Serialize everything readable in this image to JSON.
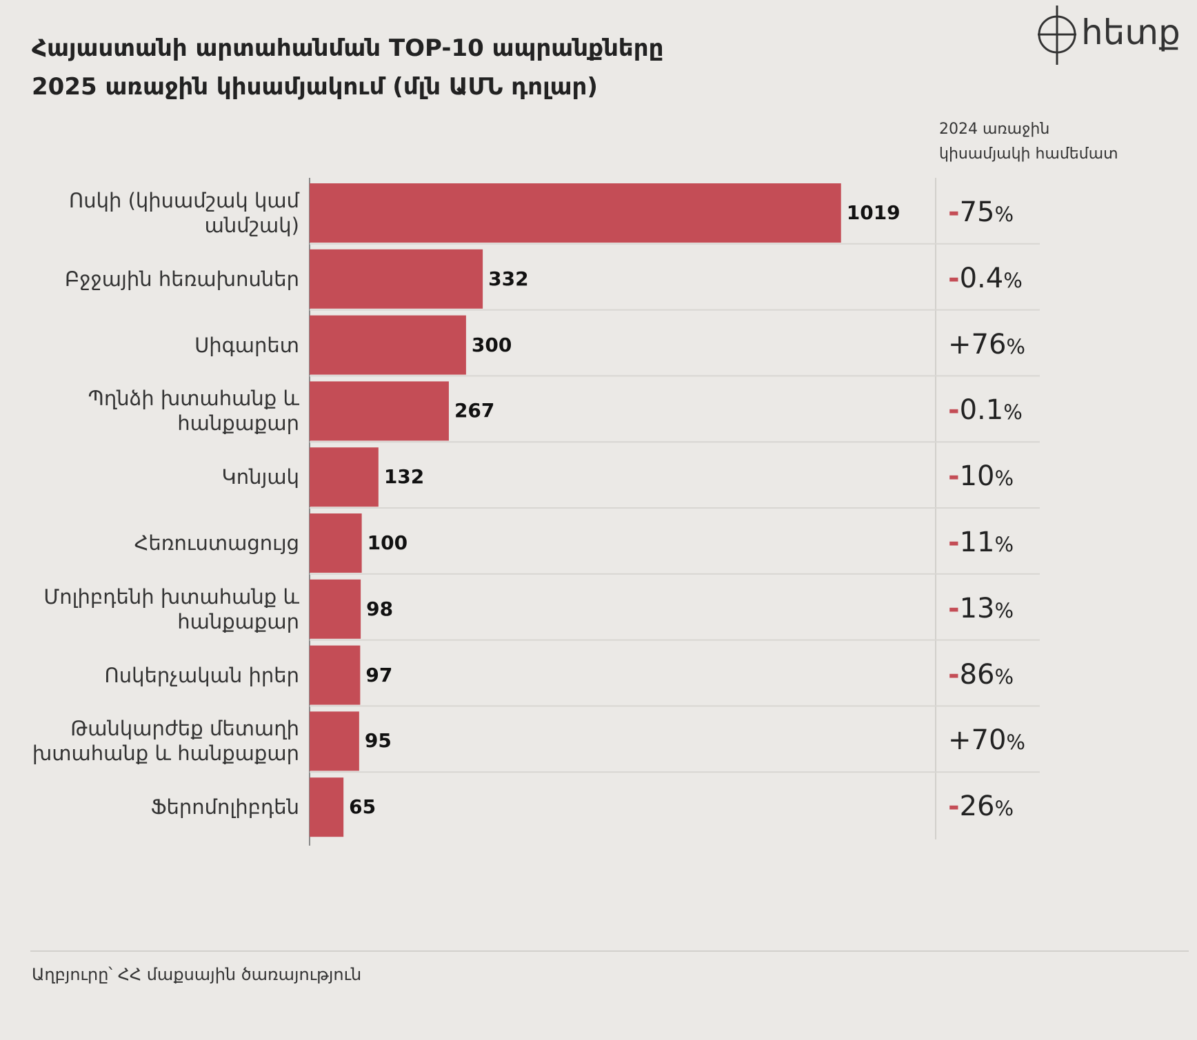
{
  "chart_data": {
    "type": "bar",
    "orientation": "horizontal",
    "title": "Հայաստանի արտահանման TOP-10 ապրանքները",
    "subtitle": "2025 առաջին կիսամյակում (մլն ԱՄՆ դոլար)",
    "categories": [
      "Ոսկի (կիսամշակ կամ անմշակ)",
      "Բջջային հեռախոսներ",
      "Սիգարետ",
      "Պղնձի խտահանք և հանքաքար",
      "Կոնյակ",
      "Հեռուստացույց",
      "Մոլիբդենի խտահանք և հանքաքար",
      "Ոսկերչական իրեր",
      "Թանկարժեք մետաղի խտահանք և հանքաքար",
      "Ֆերոմոլիբդեն"
    ],
    "values": [
      1019,
      332,
      300,
      267,
      132,
      100,
      98,
      97,
      95,
      65
    ],
    "color": "#c44d56",
    "xlim": [
      0,
      1100
    ],
    "change_header": "2024 առաջին կիսամյակի համեմատ",
    "changes": [
      "-75%",
      "-0.4%",
      "+76%",
      "-0.1%",
      "-10%",
      "-11%",
      "-13%",
      "-86%",
      "+70%",
      "-26%"
    ],
    "source": "Աղբյուրը՝ ՀՀ մաքսային ծառայություն",
    "logo": "հետք"
  }
}
